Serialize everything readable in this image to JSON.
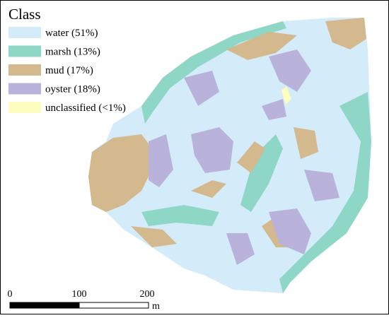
{
  "legend": {
    "title": "Class",
    "items": [
      {
        "label": "water (51%)",
        "color": "#d4ecf9"
      },
      {
        "label": "marsh (13%)",
        "color": "#8ed6c6"
      },
      {
        "label": "mud (17%)",
        "color": "#d4b88e"
      },
      {
        "label": "oyster (18%)",
        "color": "#b9b3dc"
      },
      {
        "label": "unclassified (<1%)",
        "color": "#fdfdbd"
      }
    ]
  },
  "scale_bar": {
    "ticks": [
      "0",
      "100",
      "200"
    ],
    "unit": "m"
  }
}
